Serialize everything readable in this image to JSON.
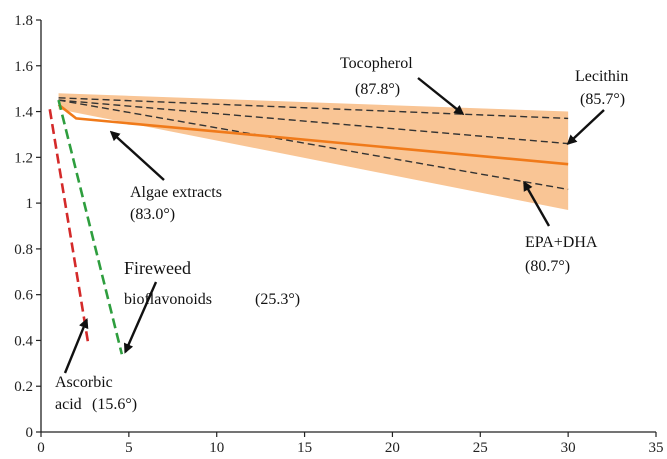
{
  "chart_data": {
    "type": "line",
    "xlim": [
      0,
      35
    ],
    "ylim": [
      0,
      1.8
    ],
    "x_ticks": [
      "0",
      "5",
      "10",
      "15",
      "20",
      "25",
      "30",
      "35"
    ],
    "y_ticks": [
      "0",
      "0.2",
      "0.4",
      "0.6",
      "0.8",
      "1",
      "1.2",
      "1.4",
      "1.6",
      "1.8"
    ],
    "grid": false,
    "band": {
      "x": [
        1,
        30
      ],
      "upper": [
        1.48,
        1.4
      ],
      "lower": [
        1.41,
        0.97
      ],
      "color": "#f9c595"
    },
    "series": [
      {
        "name": "Tocopherol",
        "angle": "(87.8°)",
        "x": [
          1,
          30
        ],
        "y": [
          1.46,
          1.37
        ],
        "style": "dashed",
        "color": "#333333",
        "arrow_tip": [
          24,
          1.39
        ]
      },
      {
        "name": "Lecithin",
        "angle": "(85.7°)",
        "x": [
          1,
          30
        ],
        "y": [
          1.45,
          1.26
        ],
        "style": "dashed",
        "color": "#333333",
        "arrow_tip": [
          30,
          1.26
        ]
      },
      {
        "name": "EPA+DHA",
        "angle": "(80.7°)",
        "x": [
          1,
          30
        ],
        "y": [
          1.45,
          1.06
        ],
        "style": "dashed",
        "color": "#333333",
        "arrow_tip": [
          27.5,
          1.09
        ]
      },
      {
        "name": "Algae extracts",
        "angle": "(83.0°)",
        "x": [
          1,
          2,
          30
        ],
        "y": [
          1.43,
          1.37,
          1.17
        ],
        "style": "solid",
        "color": "#f07a1a",
        "arrow_tip": [
          4,
          1.31
        ]
      },
      {
        "name": "Fireweed bioflavonoids",
        "angle": "(25.3°)",
        "x": [
          1,
          4.6
        ],
        "y": [
          1.45,
          0.34
        ],
        "style": "dashed",
        "color": "#2e9e3e",
        "arrow_tip": [
          4.8,
          0.35
        ]
      },
      {
        "name": "Ascorbic acid",
        "angle": "(15.6°)",
        "x": [
          0.5,
          2.7
        ],
        "y": [
          1.41,
          0.38
        ],
        "style": "dashed",
        "color": "#d42a2a",
        "arrow_tip": [
          2.6,
          0.49
        ]
      }
    ],
    "annotations": {
      "tocopherol": {
        "name": "Tocopherol",
        "angle": "(87.8°)"
      },
      "lecithin": {
        "name": "Lecithin",
        "angle": "(85.7°)"
      },
      "algae": {
        "name": "Algae extracts",
        "angle": "(83.0°)"
      },
      "epa": {
        "name": "EPA+DHA",
        "angle": "(80.7°)"
      },
      "fireweed": {
        "line1": "Fireweed",
        "line2": "bioflavonoids",
        "angle": "(25.3°)"
      },
      "ascorbic": {
        "line1": "Ascorbic",
        "line2": "acid",
        "angle": "(15.6°)"
      }
    }
  }
}
